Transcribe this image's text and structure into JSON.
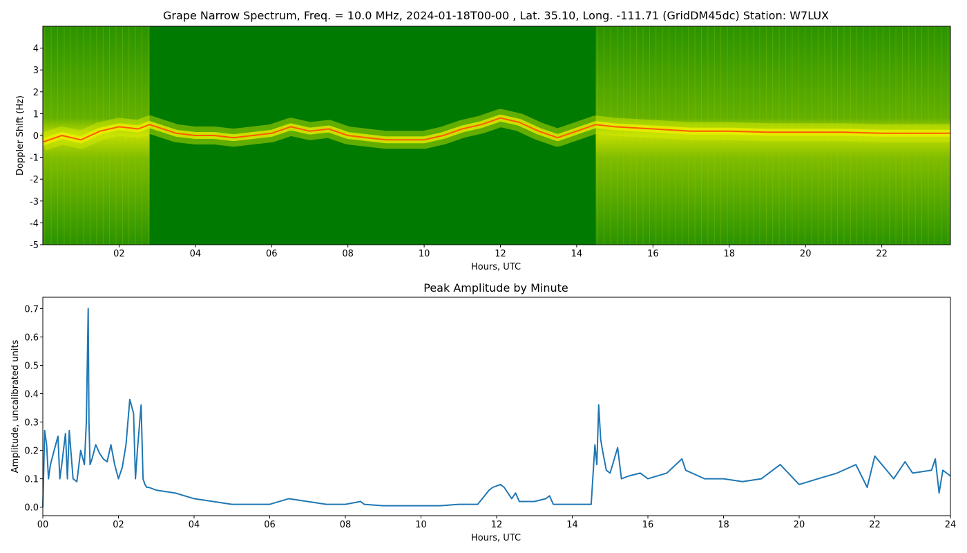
{
  "chart_data": [
    {
      "type": "heatmap",
      "title": "Grape Narrow Spectrum, Freq. = 10.0 MHz, 2024-01-18T00-00 , Lat.  35.10, Long. -111.71 (GridDM45dc) Station: W7LUX",
      "xlabel": "Hours, UTC",
      "ylabel": "Doppler Shift (Hz)",
      "xlim": [
        0,
        23.8
      ],
      "ylim": [
        -5,
        5
      ],
      "x_ticks": [
        2,
        4,
        6,
        8,
        10,
        12,
        14,
        16,
        18,
        20,
        22
      ],
      "x_tick_labels": [
        "02",
        "04",
        "06",
        "08",
        "10",
        "12",
        "14",
        "16",
        "18",
        "20",
        "22"
      ],
      "y_ticks": [
        -5,
        -4,
        -3,
        -2,
        -1,
        0,
        1,
        2,
        3,
        4
      ],
      "y_tick_labels": [
        "-5",
        "-4",
        "-3",
        "-2",
        "-1",
        "0",
        "1",
        "2",
        "3",
        "4"
      ],
      "grid": false,
      "colors": {
        "background": "#007a00",
        "low": "#1f8f00",
        "mid": "#e8f000",
        "high": "#ff4000"
      },
      "doppler_trace": {
        "x": [
          0.0,
          0.5,
          1.0,
          1.5,
          2.0,
          2.5,
          2.8,
          3.5,
          4.0,
          4.5,
          5.0,
          5.5,
          6.0,
          6.5,
          7.0,
          7.5,
          8.0,
          8.5,
          9.0,
          9.5,
          10.0,
          10.5,
          11.0,
          11.5,
          12.0,
          12.5,
          13.0,
          13.5,
          14.0,
          14.5,
          15.0,
          16.0,
          17.0,
          18.0,
          19.0,
          20.0,
          21.0,
          22.0,
          23.0,
          23.8
        ],
        "y": [
          -0.3,
          0.0,
          -0.2,
          0.2,
          0.4,
          0.3,
          0.5,
          0.1,
          0.0,
          0.0,
          -0.1,
          0.0,
          0.1,
          0.4,
          0.2,
          0.3,
          0.0,
          -0.1,
          -0.2,
          -0.2,
          -0.2,
          0.0,
          0.3,
          0.5,
          0.8,
          0.6,
          0.2,
          -0.1,
          0.2,
          0.5,
          0.4,
          0.3,
          0.2,
          0.2,
          0.15,
          0.15,
          0.15,
          0.1,
          0.1,
          0.1
        ]
      },
      "bright_bands": [
        [
          0.0,
          2.8
        ],
        [
          14.5,
          23.8
        ]
      ]
    },
    {
      "type": "line",
      "title": "Peak Amplitude by Minute",
      "xlabel": "Hours, UTC",
      "ylabel": "Amplitude, uncalibrated units",
      "xlim": [
        0,
        24
      ],
      "ylim": [
        -0.03,
        0.74
      ],
      "x_ticks": [
        0,
        2,
        4,
        6,
        8,
        10,
        12,
        14,
        16,
        18,
        20,
        22,
        24
      ],
      "x_tick_labels": [
        "00",
        "02",
        "04",
        "06",
        "08",
        "10",
        "12",
        "14",
        "16",
        "18",
        "20",
        "22",
        "24"
      ],
      "y_ticks": [
        0.0,
        0.1,
        0.2,
        0.3,
        0.4,
        0.5,
        0.6,
        0.7
      ],
      "y_tick_labels": [
        "0.0",
        "0.1",
        "0.2",
        "0.3",
        "0.4",
        "0.5",
        "0.6",
        "0.7"
      ],
      "grid": false,
      "line_color": "#1f77b4",
      "series": [
        {
          "x": [
            0.0,
            0.05,
            0.1,
            0.15,
            0.2,
            0.3,
            0.4,
            0.45,
            0.5,
            0.6,
            0.65,
            0.7,
            0.8,
            0.9,
            1.0,
            1.1,
            1.15,
            1.2,
            1.22,
            1.25,
            1.3,
            1.4,
            1.5,
            1.6,
            1.7,
            1.8,
            1.9,
            2.0,
            2.1,
            2.2,
            2.3,
            2.4,
            2.45,
            2.5,
            2.6,
            2.65,
            2.7,
            2.75,
            2.8,
            3.0,
            3.5,
            4.0,
            4.5,
            5.0,
            5.5,
            6.0,
            6.5,
            7.0,
            7.5,
            8.0,
            8.4,
            8.5,
            9.0,
            9.5,
            10.0,
            10.5,
            11.0,
            11.5,
            11.8,
            11.9,
            12.1,
            12.2,
            12.4,
            12.5,
            12.6,
            13.0,
            13.3,
            13.4,
            13.5,
            14.0,
            14.5,
            14.6,
            14.65,
            14.7,
            14.75,
            14.8,
            14.9,
            15.0,
            15.2,
            15.3,
            15.5,
            15.8,
            16.0,
            16.5,
            16.9,
            17.0,
            17.5,
            18.0,
            18.5,
            19.0,
            19.5,
            20.0,
            20.5,
            21.0,
            21.5,
            21.8,
            22.0,
            22.5,
            22.8,
            23.0,
            23.5,
            23.6,
            23.7,
            23.8,
            24.0
          ],
          "y": [
            0.0,
            0.27,
            0.22,
            0.1,
            0.15,
            0.2,
            0.25,
            0.1,
            0.15,
            0.26,
            0.1,
            0.27,
            0.1,
            0.09,
            0.2,
            0.15,
            0.3,
            0.7,
            0.3,
            0.15,
            0.17,
            0.22,
            0.19,
            0.17,
            0.16,
            0.22,
            0.15,
            0.1,
            0.14,
            0.22,
            0.38,
            0.33,
            0.1,
            0.2,
            0.36,
            0.1,
            0.08,
            0.07,
            0.07,
            0.06,
            0.05,
            0.03,
            0.02,
            0.01,
            0.01,
            0.01,
            0.03,
            0.02,
            0.01,
            0.01,
            0.02,
            0.01,
            0.005,
            0.005,
            0.005,
            0.005,
            0.01,
            0.01,
            0.06,
            0.07,
            0.08,
            0.07,
            0.03,
            0.05,
            0.02,
            0.02,
            0.03,
            0.04,
            0.01,
            0.01,
            0.01,
            0.22,
            0.15,
            0.36,
            0.24,
            0.2,
            0.13,
            0.12,
            0.21,
            0.1,
            0.11,
            0.12,
            0.1,
            0.12,
            0.17,
            0.13,
            0.1,
            0.1,
            0.09,
            0.1,
            0.15,
            0.08,
            0.1,
            0.12,
            0.15,
            0.07,
            0.18,
            0.1,
            0.16,
            0.12,
            0.13,
            0.17,
            0.05,
            0.13,
            0.11
          ]
        }
      ]
    }
  ]
}
